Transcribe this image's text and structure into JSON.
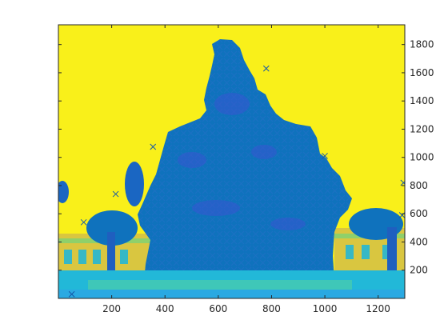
{
  "chart_data": {
    "type": "scatter",
    "title": "",
    "xlabel": "",
    "ylabel": "",
    "xlim": [
      0,
      1300
    ],
    "ylim": [
      0,
      1940
    ],
    "y_axis_side": "right",
    "grid": false,
    "legend": "none",
    "x_ticks": [
      "200",
      "400",
      "600",
      "800",
      "1000",
      "1200"
    ],
    "y_ticks": [
      "200",
      "400",
      "600",
      "800",
      "1000",
      "1200",
      "1400",
      "1600",
      "1800"
    ],
    "x_tick_values": [
      200,
      400,
      600,
      800,
      1000,
      1200
    ],
    "y_tick_values": [
      200,
      400,
      600,
      800,
      1000,
      1200,
      1400,
      1600,
      1800
    ],
    "background_image": "pseudo-colored photo of a tree (parula colormap): yellow sky, blue tree silhouette, buildings at lower left and right",
    "marker": "x",
    "colors": {
      "sky": "#f9f01a",
      "tree": "#0f72bd",
      "tree_dark": "#1f5fbf",
      "ground": "#22b8d8",
      "building": "#d9c640",
      "marker": "#1558a8"
    },
    "outlier_points": [
      {
        "x": 355,
        "y": 1075
      },
      {
        "x": 215,
        "y": 740
      },
      {
        "x": 95,
        "y": 540
      },
      {
        "x": 780,
        "y": 1630
      },
      {
        "x": 1000,
        "y": 1010
      },
      {
        "x": 1295,
        "y": 820
      },
      {
        "x": 1290,
        "y": 590
      },
      {
        "x": 50,
        "y": 30
      }
    ]
  }
}
